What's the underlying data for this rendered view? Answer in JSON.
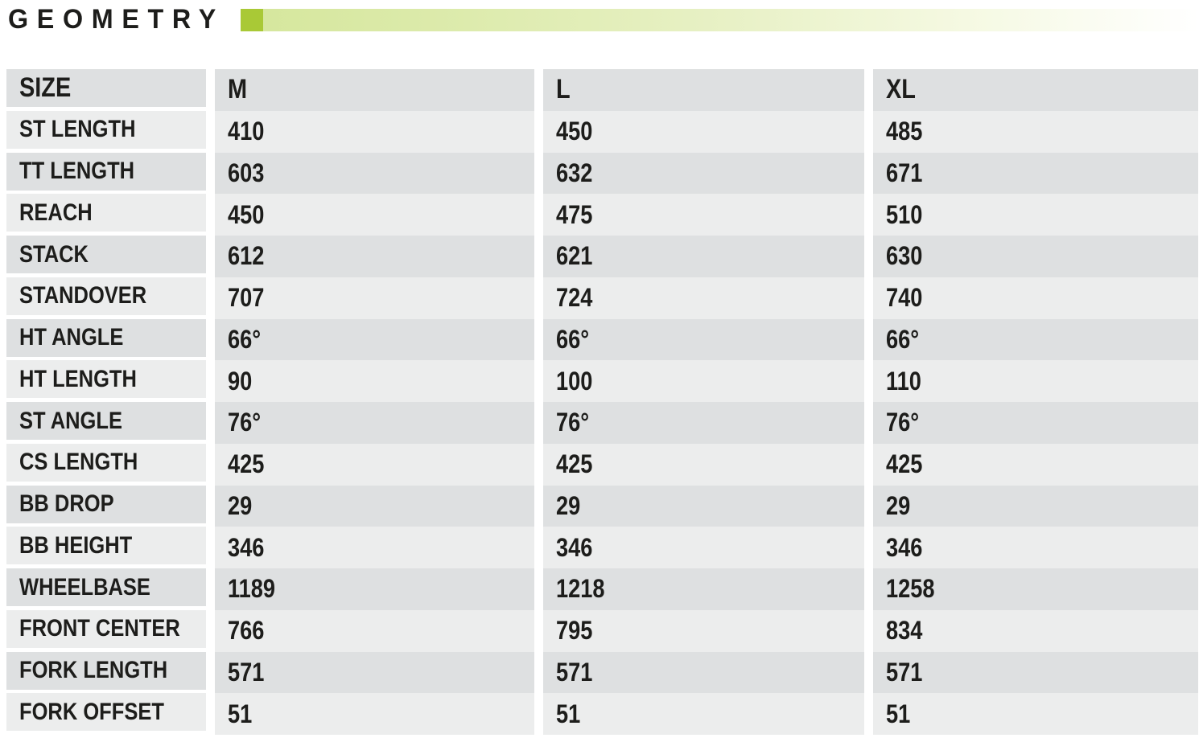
{
  "header": {
    "title": "GEOMETRY"
  },
  "accent": {
    "square_color": "#a9c936",
    "bar_gradient_start": "#d6e79e",
    "bar_gradient_end": "#ffffff"
  },
  "table": {
    "columns": [
      "SIZE",
      "M",
      "L",
      "XL"
    ],
    "rows": [
      {
        "label": "ST LENGTH",
        "values": [
          "410",
          "450",
          "485"
        ]
      },
      {
        "label": "TT LENGTH",
        "values": [
          "603",
          "632",
          "671"
        ]
      },
      {
        "label": "REACH",
        "values": [
          "450",
          "475",
          "510"
        ]
      },
      {
        "label": "STACK",
        "values": [
          "612",
          "621",
          "630"
        ]
      },
      {
        "label": "STANDOVER",
        "values": [
          "707",
          "724",
          "740"
        ]
      },
      {
        "label": "HT ANGLE",
        "values": [
          "66°",
          "66°",
          "66°"
        ]
      },
      {
        "label": "HT LENGTH",
        "values": [
          "90",
          "100",
          "110"
        ]
      },
      {
        "label": "ST ANGLE",
        "values": [
          "76°",
          "76°",
          "76°"
        ]
      },
      {
        "label": "CS LENGTH",
        "values": [
          "425",
          "425",
          "425"
        ]
      },
      {
        "label": "BB DROP",
        "values": [
          "29",
          "29",
          "29"
        ]
      },
      {
        "label": "BB HEIGHT",
        "values": [
          "346",
          "346",
          "346"
        ]
      },
      {
        "label": "WHEELBASE",
        "values": [
          "1189",
          "1218",
          "1258"
        ]
      },
      {
        "label": "FRONT CENTER",
        "values": [
          "766",
          "795",
          "834"
        ]
      },
      {
        "label": "FORK LENGTH",
        "values": [
          "571",
          "571",
          "571"
        ]
      },
      {
        "label": "FORK OFFSET",
        "values": [
          "51",
          "51",
          "51"
        ]
      }
    ]
  },
  "chart_data": {
    "type": "table",
    "title": "GEOMETRY",
    "columns": [
      "SIZE",
      "M",
      "L",
      "XL"
    ],
    "rows": [
      [
        "ST LENGTH",
        "410",
        "450",
        "485"
      ],
      [
        "TT LENGTH",
        "603",
        "632",
        "671"
      ],
      [
        "REACH",
        "450",
        "475",
        "510"
      ],
      [
        "STACK",
        "612",
        "621",
        "630"
      ],
      [
        "STANDOVER",
        "707",
        "724",
        "740"
      ],
      [
        "HT ANGLE",
        "66°",
        "66°",
        "66°"
      ],
      [
        "HT LENGTH",
        "90",
        "100",
        "110"
      ],
      [
        "ST ANGLE",
        "76°",
        "76°",
        "76°"
      ],
      [
        "CS LENGTH",
        "425",
        "425",
        "425"
      ],
      [
        "BB DROP",
        "29",
        "29",
        "29"
      ],
      [
        "BB HEIGHT",
        "346",
        "346",
        "346"
      ],
      [
        "WHEELBASE",
        "1189",
        "1218",
        "1258"
      ],
      [
        "FRONT CENTER",
        "766",
        "795",
        "834"
      ],
      [
        "FORK LENGTH",
        "571",
        "571",
        "571"
      ],
      [
        "FORK OFFSET",
        "51",
        "51",
        "51"
      ]
    ]
  }
}
